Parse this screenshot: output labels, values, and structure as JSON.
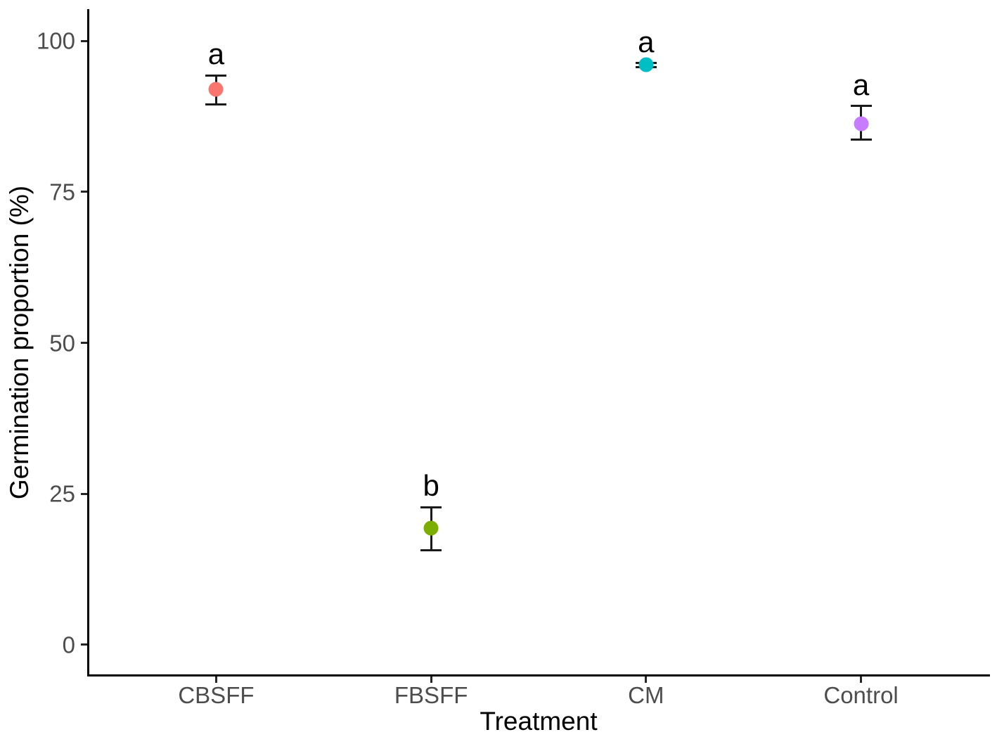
{
  "figure": {
    "title": ""
  },
  "chart_data": {
    "type": "scatter",
    "subtype": "means-with-error-bars",
    "title": "",
    "xlabel": "Treatment",
    "ylabel": "Germination proportion (%)",
    "categories": [
      "CBSFF",
      "FBSFF",
      "CM",
      "Control"
    ],
    "series": [
      {
        "category": "CBSFF",
        "mean": 92.0,
        "lower": 89.5,
        "upper": 94.3,
        "sig_letter": "a",
        "color": "#F8766D"
      },
      {
        "category": "FBSFF",
        "mean": 19.3,
        "lower": 15.7,
        "upper": 22.8,
        "sig_letter": "b",
        "color": "#7CAE00"
      },
      {
        "category": "CM",
        "mean": 96.0,
        "lower": 95.7,
        "upper": 96.3,
        "sig_letter": "a",
        "color": "#00BFC4"
      },
      {
        "category": "Control",
        "mean": 86.3,
        "lower": 83.6,
        "upper": 89.2,
        "sig_letter": "a",
        "color": "#C77CFF"
      }
    ],
    "yticks": [
      0,
      25,
      50,
      75,
      100
    ],
    "ylim": [
      -5.25,
      105.25
    ],
    "grid": false,
    "legend": "none",
    "colors": {
      "axis_text": "#4d4d4d",
      "axis_title": "#000000",
      "axis_line": "#000000",
      "error_bar": "#1a1a1a",
      "background": "#ffffff"
    }
  }
}
